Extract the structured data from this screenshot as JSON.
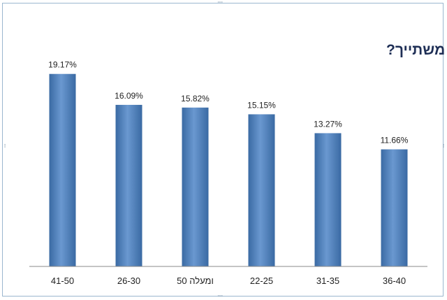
{
  "chart_data": {
    "type": "bar",
    "title": "לאיזו קבוצת גיל אתה משתייך?",
    "categories": [
      "41-50",
      "26-30",
      "50 ומעלה",
      "22-25",
      "31-35",
      "36-40"
    ],
    "values": [
      19.17,
      16.09,
      15.82,
      15.15,
      13.27,
      11.66
    ],
    "data_labels": [
      "19.17%",
      "16.09%",
      "15.82%",
      "15.15%",
      "13.27%",
      "11.66%"
    ],
    "ylim": [
      0,
      25
    ],
    "grid": false,
    "legend": "none",
    "colors": {
      "bar": "#4f81bd",
      "bar_dark": "#3a6aa3",
      "bar_light": "#6a98d0",
      "axis": "#8a8a8a",
      "title": "#1f2f56"
    }
  }
}
